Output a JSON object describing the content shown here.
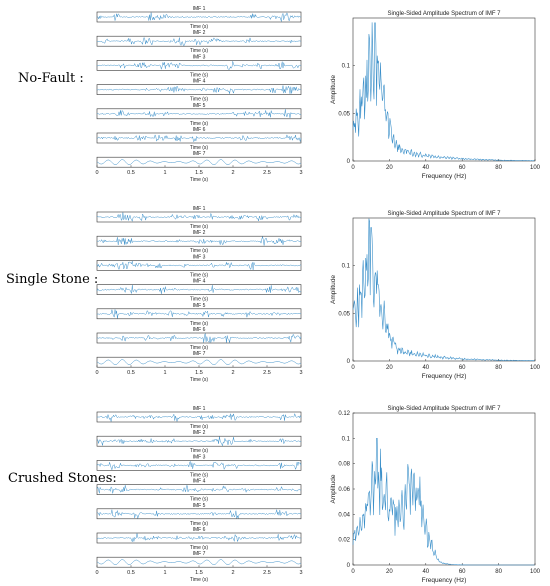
{
  "rows": [
    {
      "label": "No-Fault :",
      "imf_panel": {
        "titles": [
          "IMF 1",
          "IMF 2",
          "IMF 3",
          "IMF 4",
          "IMF 5",
          "IMF 6",
          "IMF 7"
        ],
        "time_label": "Time (s)",
        "xticks": [
          "0",
          "0.5",
          "1",
          "1.5",
          "2",
          "2.5",
          "3"
        ]
      },
      "spectrum": {
        "type": "line",
        "title": "Single-Sided Amplitude Spectrum of IMF 7",
        "xlabel": "Frequency (Hz)",
        "ylabel": "Amplitude",
        "xlim": [
          0,
          100
        ],
        "ylim": [
          0,
          0.15
        ],
        "yticks": [
          0,
          0.05,
          0.1
        ],
        "xticks": [
          0,
          20,
          40,
          60,
          80,
          100
        ],
        "peak_freq": 12,
        "peak_amp": 0.145
      }
    },
    {
      "label": "Single Stone :",
      "imf_panel": {
        "titles": [
          "IMF 1",
          "IMF 2",
          "IMF 3",
          "IMF 4",
          "IMF 5",
          "IMF 6",
          "IMF 7"
        ],
        "time_label": "Time (s)",
        "xticks": [
          "0",
          "0.5",
          "1",
          "1.5",
          "2",
          "2.5",
          "3"
        ]
      },
      "spectrum": {
        "type": "line",
        "title": "Single-Sided Amplitude Spectrum of IMF 7",
        "xlabel": "Frequency (Hz)",
        "ylabel": "Amplitude",
        "xlim": [
          0,
          100
        ],
        "ylim": [
          0,
          0.15
        ],
        "yticks": [
          0,
          0.05,
          0.1
        ],
        "xticks": [
          0,
          20,
          40,
          60,
          80,
          100
        ],
        "peak_freq": 10,
        "peak_amp": 0.14
      }
    },
    {
      "label": "Crushed Stones:",
      "imf_panel": {
        "titles": [
          "IMF 1",
          "IMF 2",
          "IMF 3",
          "IMF 4",
          "IMF 5",
          "IMF 6",
          "IMF 7"
        ],
        "time_label": "Time (s)",
        "xticks": [
          "0",
          "0.5",
          "1",
          "1.5",
          "2",
          "2.5",
          "3"
        ]
      },
      "spectrum": {
        "type": "line",
        "title": "Single-Sided Amplitude Spectrum of IMF 7",
        "xlabel": "Frequency (Hz)",
        "ylabel": "Amplitude",
        "xlim": [
          0,
          100
        ],
        "ylim": [
          0,
          0.12
        ],
        "yticks": [
          0,
          0.02,
          0.04,
          0.06,
          0.08,
          0.1,
          0.12
        ],
        "xticks": [
          0,
          20,
          40,
          60,
          80,
          100
        ],
        "peak_freq": 13,
        "peak_amp": 0.1
      }
    }
  ],
  "colors": {
    "signal": "#3a8fc9",
    "axis": "#333333"
  }
}
